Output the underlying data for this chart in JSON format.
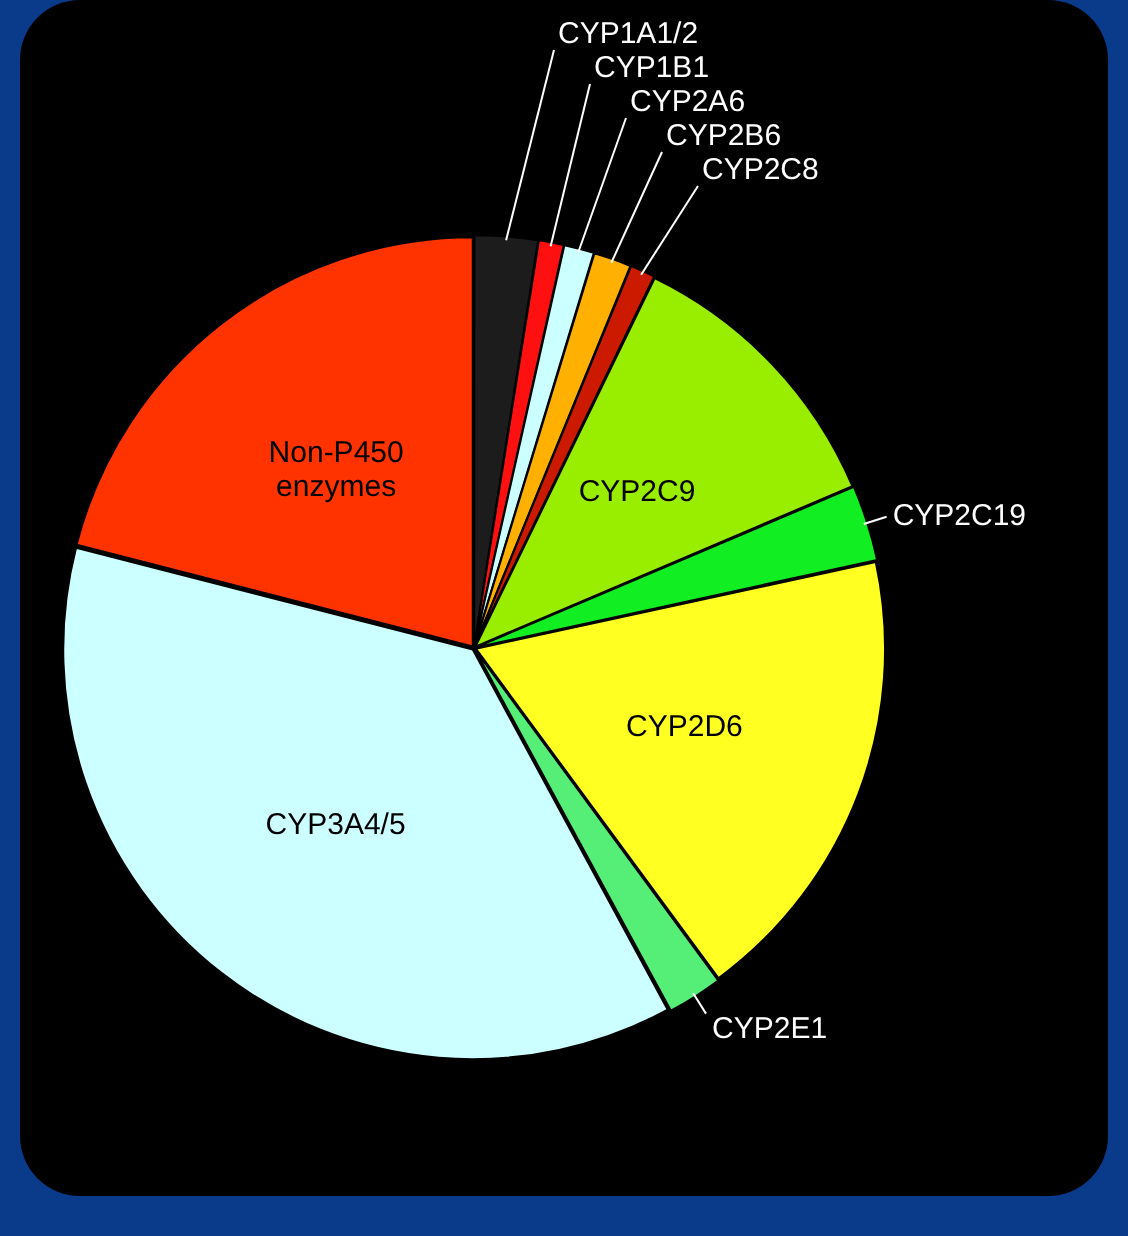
{
  "chart_data": {
    "type": "pie",
    "categories": [
      "CYP1A1/2",
      "CYP1B1",
      "CYP2A6",
      "CYP2B6",
      "CYP2C8",
      "CYP2C9",
      "CYP2C19",
      "CYP2D6",
      "CYP2E1",
      "CYP3A4/5",
      "Non-P450 enzymes"
    ],
    "values": [
      2.5,
      1,
      1.2,
      1.5,
      1,
      11.4,
      3,
      18.3,
      2.2,
      36.9,
      21
    ],
    "colors": [
      "#1c1c1c",
      "#ff1010",
      "#ccffff",
      "#ffb000",
      "#cc1a00",
      "#99ee00",
      "#11ee22",
      "#ffff22",
      "#55ee77",
      "#ccffff",
      "#ff3300"
    ]
  }
}
